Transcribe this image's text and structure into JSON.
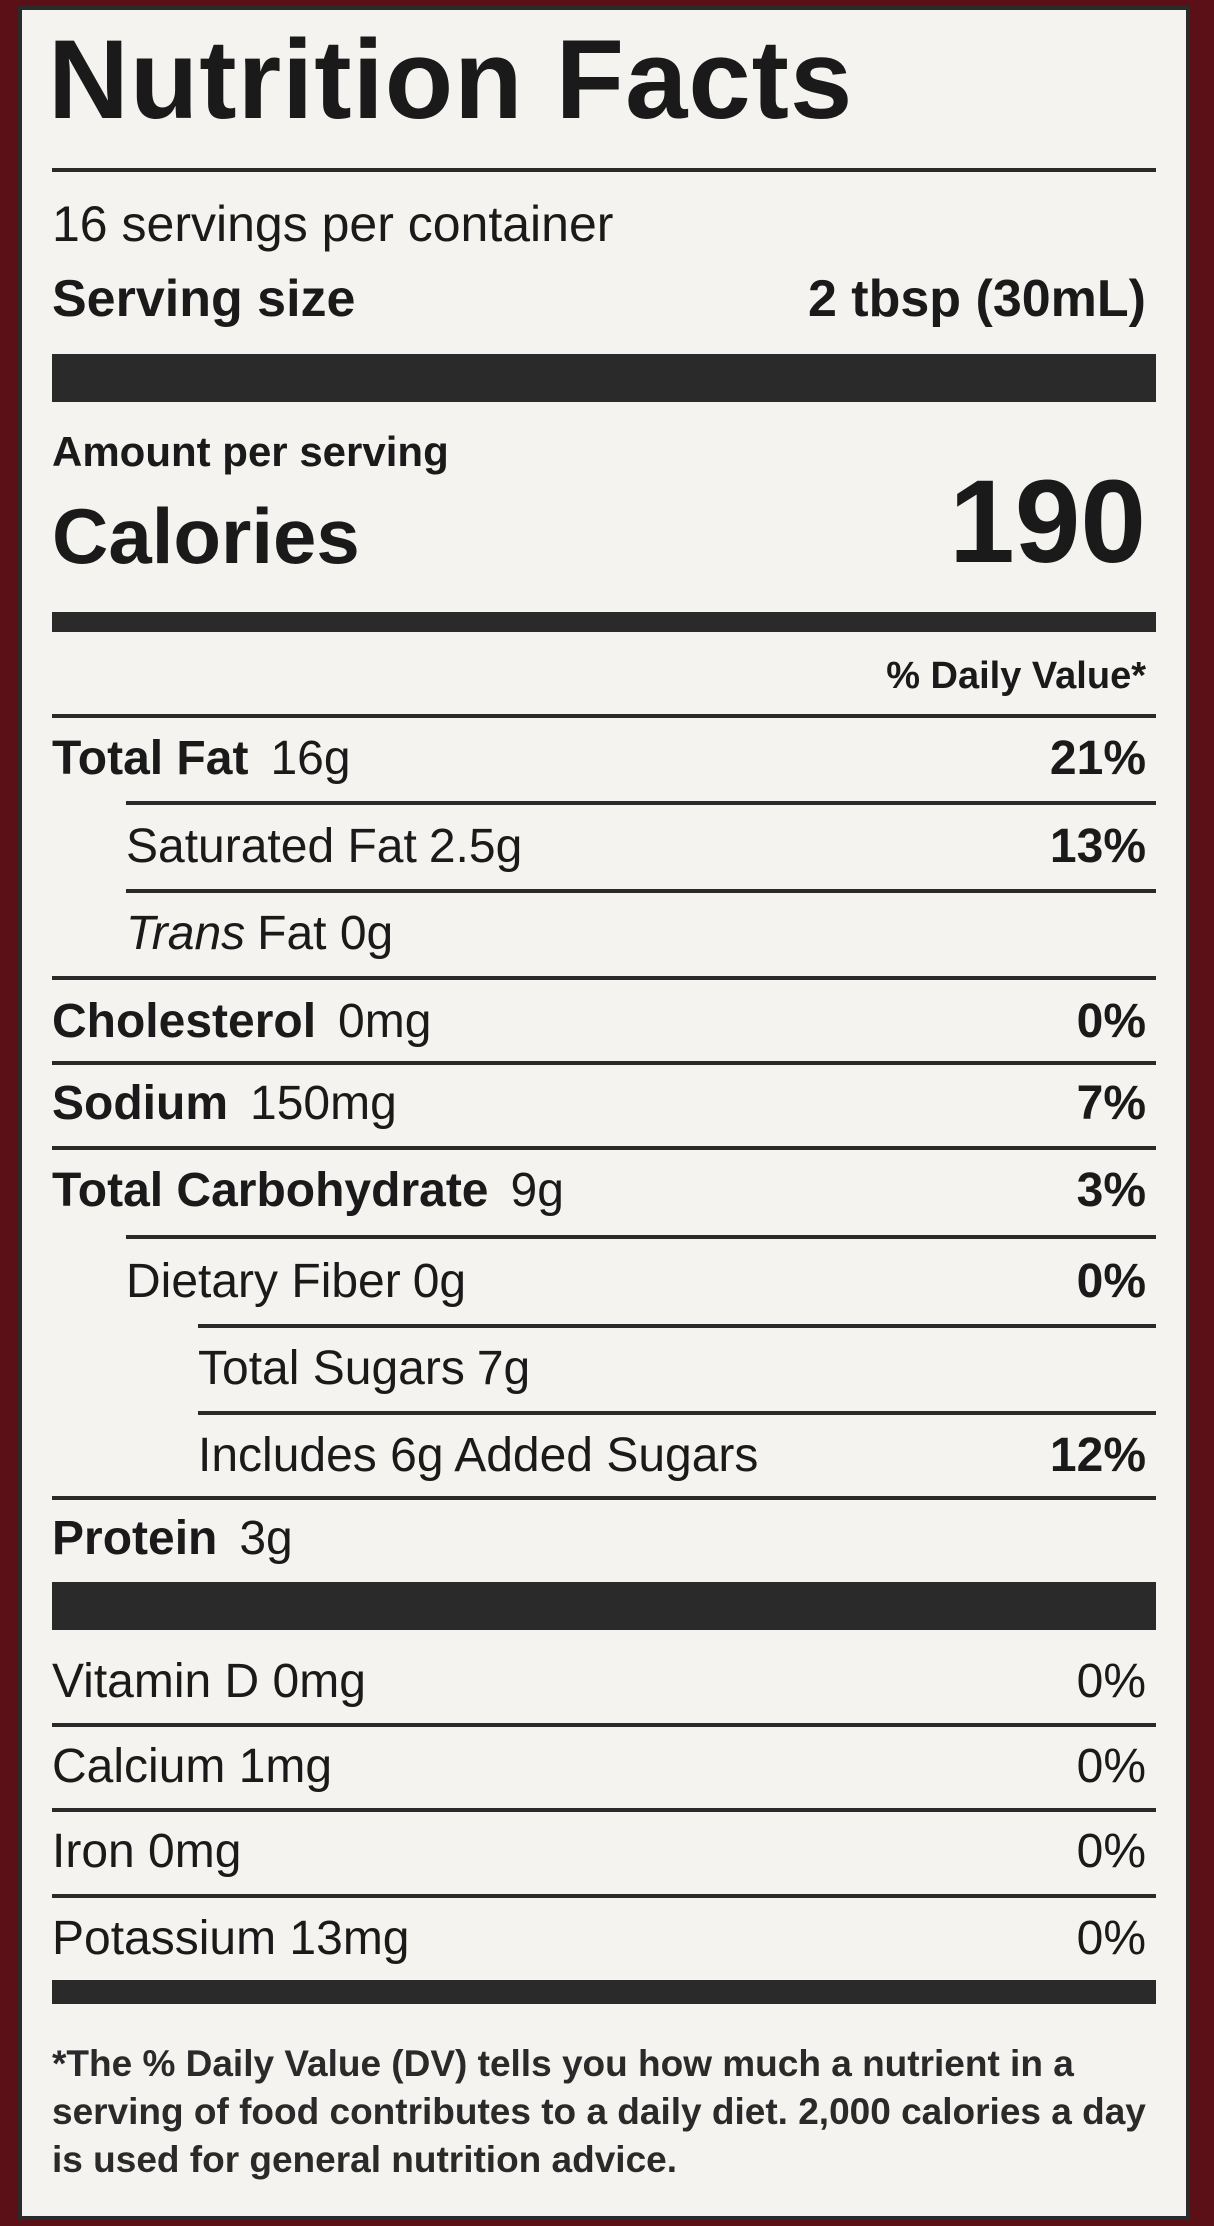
{
  "header": {
    "title": "Nutrition Facts",
    "servings": "16 servings per container",
    "serving_size_label": "Serving size",
    "serving_size": "2 tbsp (30mL)"
  },
  "calories": {
    "amount_label": "Amount per serving",
    "label": "Calories",
    "value": "190"
  },
  "daily_value_header": "% Daily Value*",
  "nutrients": [
    {
      "label": "Total Fat",
      "amount": "16g",
      "dv": "21%"
    },
    {
      "label": "Saturated Fat",
      "amount": "2.5g",
      "dv": "13%"
    },
    {
      "label": "Trans",
      "amount": "Fat 0g"
    },
    {
      "label": "Cholesterol",
      "amount": "0mg",
      "dv": "0%"
    },
    {
      "label": "Sodium",
      "amount": "150mg",
      "dv": "7%"
    },
    {
      "label": "Total Carbohydrate",
      "amount": "9g",
      "dv": "3%"
    },
    {
      "label": "Dietary Fiber",
      "amount": "0g",
      "dv": "0%"
    },
    {
      "label": "Total Sugars",
      "amount": "7g"
    },
    {
      "label": "Includes 6g Added Sugars",
      "dv": "12%"
    },
    {
      "label": "Protein",
      "amount": "3g"
    }
  ],
  "vitamins": [
    {
      "label": "Vitamin D 0mg",
      "dv": "0%"
    },
    {
      "label": "Calcium 1mg",
      "dv": "0%"
    },
    {
      "label": "Iron 0mg",
      "dv": "0%"
    },
    {
      "label": "Potassium 13mg",
      "dv": "0%"
    }
  ],
  "footnote": "*The % Daily Value (DV) tells you how much a nutrient in a serving of food contributes to a daily diet. 2,000 calories a day is used for general nutrition advice."
}
